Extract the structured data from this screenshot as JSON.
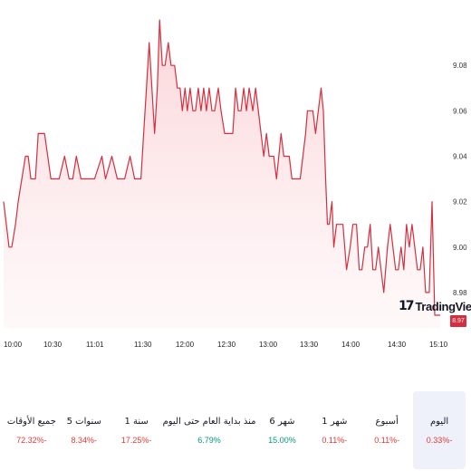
{
  "chart_data": {
    "type": "area",
    "x_ticks": [
      "10:00",
      "10:30",
      "11:01",
      "11:30",
      "12:00",
      "12:30",
      "13:00",
      "13:30",
      "14:00",
      "14:30",
      "15:10"
    ],
    "y_ticks": [
      "9.08",
      "9.06",
      "9.04",
      "9.02",
      "9.00",
      "8.98"
    ],
    "ylim": [
      8.97,
      9.1
    ],
    "last_price": "8.97",
    "line_color": "#d32f3f",
    "fill_color": "#fde2e4",
    "points": [
      [
        0,
        9.02
      ],
      [
        1.2,
        9.0
      ],
      [
        1.8,
        9.0
      ],
      [
        2.6,
        9.01
      ],
      [
        3.2,
        9.02
      ],
      [
        4.0,
        9.03
      ],
      [
        4.8,
        9.04
      ],
      [
        5.4,
        9.04
      ],
      [
        6.0,
        9.03
      ],
      [
        7.0,
        9.03
      ],
      [
        7.6,
        9.05
      ],
      [
        8.2,
        9.05
      ],
      [
        9.0,
        9.05
      ],
      [
        10.4,
        9.03
      ],
      [
        11.4,
        9.03
      ],
      [
        12.2,
        9.03
      ],
      [
        13.4,
        9.04
      ],
      [
        14.4,
        9.03
      ],
      [
        15.2,
        9.03
      ],
      [
        16.0,
        9.04
      ],
      [
        17.0,
        9.03
      ],
      [
        20.0,
        9.03
      ],
      [
        21.6,
        9.04
      ],
      [
        22.4,
        9.03
      ],
      [
        23.8,
        9.04
      ],
      [
        25.0,
        9.03
      ],
      [
        26.6,
        9.03
      ],
      [
        27.8,
        9.04
      ],
      [
        28.8,
        9.03
      ],
      [
        30.2,
        9.03
      ],
      [
        30.8,
        9.05
      ],
      [
        31.4,
        9.07
      ],
      [
        32.0,
        9.09
      ],
      [
        32.6,
        9.07
      ],
      [
        33.2,
        9.05
      ],
      [
        33.8,
        9.07
      ],
      [
        34.3,
        9.1
      ],
      [
        34.9,
        9.08
      ],
      [
        35.5,
        9.08
      ],
      [
        36.2,
        9.09
      ],
      [
        36.8,
        9.08
      ],
      [
        37.6,
        9.08
      ],
      [
        38.2,
        9.07
      ],
      [
        38.8,
        9.07
      ],
      [
        39.3,
        9.06
      ],
      [
        39.9,
        9.07
      ],
      [
        40.4,
        9.06
      ],
      [
        41.0,
        9.07
      ],
      [
        41.6,
        9.06
      ],
      [
        42.2,
        9.06
      ],
      [
        42.8,
        9.07
      ],
      [
        43.4,
        9.06
      ],
      [
        44.0,
        9.07
      ],
      [
        44.6,
        9.06
      ],
      [
        45.2,
        9.07
      ],
      [
        45.8,
        9.06
      ],
      [
        46.4,
        9.06
      ],
      [
        47.2,
        9.07
      ],
      [
        47.8,
        9.06
      ],
      [
        48.6,
        9.05
      ],
      [
        50.4,
        9.05
      ],
      [
        51.0,
        9.07
      ],
      [
        51.6,
        9.06
      ],
      [
        52.2,
        9.06
      ],
      [
        52.8,
        9.07
      ],
      [
        53.4,
        9.06
      ],
      [
        54.0,
        9.07
      ],
      [
        54.8,
        9.06
      ],
      [
        55.4,
        9.07
      ],
      [
        56.0,
        9.06
      ],
      [
        56.6,
        9.05
      ],
      [
        57.2,
        9.04
      ],
      [
        57.8,
        9.05
      ],
      [
        58.4,
        9.04
      ],
      [
        59.4,
        9.04
      ],
      [
        60.0,
        9.03
      ],
      [
        61.0,
        9.05
      ],
      [
        61.6,
        9.04
      ],
      [
        62.2,
        9.04
      ],
      [
        62.8,
        9.04
      ],
      [
        63.4,
        9.03
      ],
      [
        64.0,
        9.03
      ],
      [
        64.6,
        9.03
      ],
      [
        65.2,
        9.03
      ],
      [
        65.8,
        9.04
      ],
      [
        66.4,
        9.05
      ],
      [
        66.8,
        9.06
      ],
      [
        67.4,
        9.06
      ],
      [
        68.0,
        9.06
      ],
      [
        68.6,
        9.05
      ],
      [
        69.2,
        9.06
      ],
      [
        69.8,
        9.07
      ],
      [
        70.3,
        9.06
      ],
      [
        70.8,
        9.03
      ],
      [
        71.2,
        9.01
      ],
      [
        71.6,
        9.01
      ],
      [
        72.2,
        9.02
      ],
      [
        72.6,
        9.0
      ],
      [
        73.2,
        9.01
      ],
      [
        73.8,
        9.01
      ],
      [
        74.6,
        9.01
      ],
      [
        75.4,
        8.99
      ],
      [
        76.2,
        9.0
      ],
      [
        76.8,
        9.01
      ],
      [
        77.6,
        9.01
      ],
      [
        78.2,
        8.99
      ],
      [
        78.8,
        8.99
      ],
      [
        79.4,
        9.0
      ],
      [
        80.0,
        9.0
      ],
      [
        80.6,
        9.01
      ],
      [
        81.2,
        8.99
      ],
      [
        81.8,
        8.99
      ],
      [
        82.4,
        9.0
      ],
      [
        83.0,
        8.99
      ],
      [
        83.6,
        8.98
      ],
      [
        84.4,
        9.0
      ],
      [
        85.0,
        9.01
      ],
      [
        85.6,
        9.0
      ],
      [
        86.2,
        8.99
      ],
      [
        86.8,
        8.99
      ],
      [
        87.4,
        9.0
      ],
      [
        88.0,
        8.99
      ],
      [
        88.6,
        9.01
      ],
      [
        89.2,
        9.0
      ],
      [
        89.8,
        9.01
      ],
      [
        90.4,
        9.0
      ],
      [
        91.0,
        8.99
      ],
      [
        91.6,
        8.99
      ],
      [
        92.2,
        9.0
      ],
      [
        92.8,
        8.98
      ],
      [
        93.6,
        8.98
      ],
      [
        94.2,
        9.02
      ],
      [
        94.8,
        8.97
      ],
      [
        96.0,
        8.97
      ]
    ]
  },
  "periods": [
    {
      "label": "اليوم",
      "value": "0.33%-",
      "trend": "neg",
      "active": true
    },
    {
      "label": "أسبوع",
      "value": "0.11%-",
      "trend": "neg",
      "active": false
    },
    {
      "label": "1 شهر",
      "value": "0.11%-",
      "trend": "neg",
      "active": false
    },
    {
      "label": "6 شهر",
      "value": "15.00%",
      "trend": "pos",
      "active": false
    },
    {
      "label": "منذ بداية العام حتى اليوم",
      "value": "6.79%",
      "trend": "pos",
      "active": false
    },
    {
      "label": "1 سنة",
      "value": "17.25%-",
      "trend": "neg",
      "active": false
    },
    {
      "label": "5 سنوات",
      "value": "8.34%-",
      "trend": "neg",
      "active": false
    },
    {
      "label": "جميع الأوقات",
      "value": "72.32%-",
      "trend": "neg",
      "active": false
    }
  ],
  "watermark": {
    "logo": "17",
    "text": "TradingView"
  }
}
